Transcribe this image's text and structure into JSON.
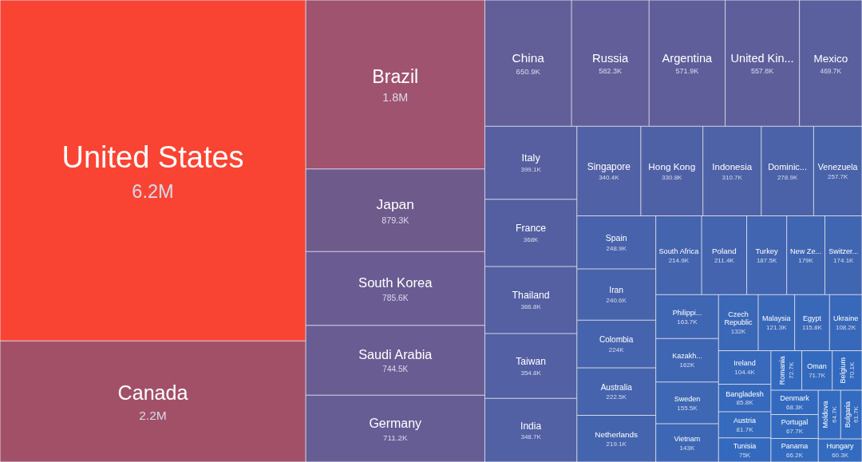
{
  "chart_data": {
    "type": "other",
    "categories": [
      "United States",
      "Canada",
      "Brazil",
      "Japan",
      "South Korea",
      "Saudi Arabia",
      "Germany",
      "China",
      "Russia",
      "Argentina",
      "United Kin...",
      "Mexico",
      "Italy",
      "France",
      "Thailand",
      "Taiwan",
      "India",
      "Singapore",
      "Hong Kong",
      "Indonesia",
      "Dominic...",
      "Venezuela",
      "Spain",
      "Iran",
      "Colombia",
      "Australia",
      "Netherlands",
      "South Africa",
      "Poland",
      "Turkey",
      "New Ze...",
      "Switzer...",
      "Philippi...",
      "Kazakh...",
      "Sweden",
      "Vietnam",
      "Czech Republic",
      "Malaysia",
      "Egypt",
      "Ukraine",
      "Ireland",
      "Bangladesh",
      "Austria",
      "Tunisia",
      "Romania",
      "Oman",
      "Belgium",
      "Denmark",
      "Portugal",
      "Panama",
      "Moldova",
      "Bulgaria",
      "Hungary"
    ],
    "values": [
      6200000,
      2200000,
      1800000,
      879300,
      785600,
      744500,
      711200,
      650900,
      582300,
      571900,
      557800,
      469700,
      399100,
      368000,
      366800,
      354800,
      348700,
      340400,
      330800,
      310700,
      278900,
      257700,
      248900,
      240600,
      224000,
      222500,
      219100,
      214900,
      211400,
      187500,
      179000,
      174100,
      163700,
      162000,
      155500,
      143000,
      132000,
      121300,
      115800,
      108200,
      104400,
      85800,
      81700,
      75000,
      72700,
      71700,
      70100,
      68300,
      67700,
      66200,
      64700,
      61700,
      60300
    ],
    "value_labels": [
      "6.2M",
      "2.2M",
      "1.8M",
      "879.3K",
      "785.6K",
      "744.5K",
      "711.2K",
      "650.9K",
      "582.3K",
      "571.9K",
      "557.8K",
      "469.7K",
      "399.1K",
      "368K",
      "366.8K",
      "354.8K",
      "348.7K",
      "340.4K",
      "330.8K",
      "310.7K",
      "278.9K",
      "257.7K",
      "248.9K",
      "240.6K",
      "224K",
      "222.5K",
      "219.1K",
      "214.9K",
      "211.4K",
      "187.5K",
      "179K",
      "174.1K",
      "163.7K",
      "162K",
      "155.5K",
      "143K",
      "132K",
      "121.3K",
      "115.8K",
      "108.2K",
      "104.4K",
      "85.8K",
      "81.7K",
      "75K",
      "72.7K",
      "71.7K",
      "70.1K",
      "68.3K",
      "67.7K",
      "66.2K",
      "64.7K",
      "61.7K",
      "60.3K"
    ],
    "colors": [
      "#fa4433",
      "#a25068",
      "#a0536e",
      "#6f5a8c",
      "#6a5c92",
      "#695c93",
      "#665d95",
      "#625e98",
      "#615e99",
      "#5f5e9a",
      "#5e5e9b",
      "#5a5f9e",
      "#575fa0",
      "#545fa1",
      "#5460a2",
      "#5360a3",
      "#5260a4",
      "#5161a5",
      "#4f61a6",
      "#4d62a7",
      "#4b62a8",
      "#4963aa",
      "#4863ab",
      "#4763ab",
      "#4664ad",
      "#4564ad",
      "#4564ae",
      "#4464ae",
      "#4464af",
      "#4265b1",
      "#4066b2",
      "#4066b2",
      "#3f66b3",
      "#3f66b3",
      "#3e67b4",
      "#3d67b5",
      "#3b67b7",
      "#3a68b8",
      "#3968b9",
      "#3868b9",
      "#3869ba",
      "#3669bc",
      "#356abd",
      "#346abe",
      "#346abe",
      "#346abe",
      "#336abf",
      "#336abf",
      "#336bbf",
      "#336bbf",
      "#326bc0",
      "#326bc0",
      "#326bc0"
    ]
  }
}
